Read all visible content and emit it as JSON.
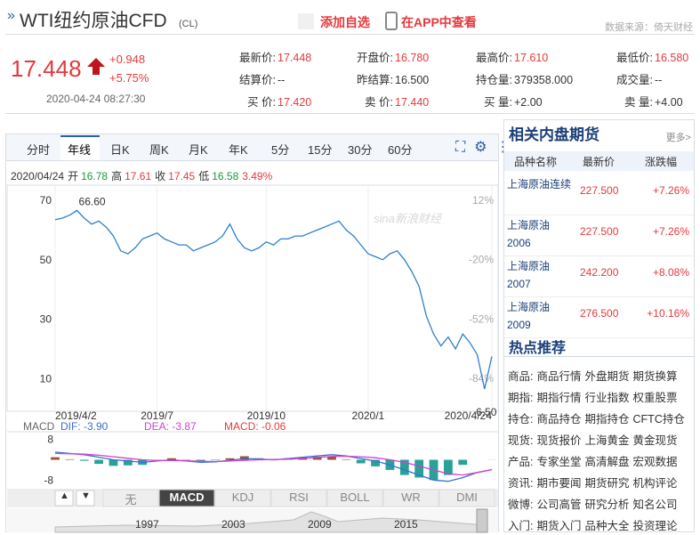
{
  "header": {
    "title": "WTI纽约原油CFD",
    "code": "(CL)",
    "add_watch": "添加自选",
    "app": "在APP中查看",
    "source": "数据来源：倚天财经"
  },
  "quote": {
    "price": "17.448",
    "change": "+0.948",
    "pct": "+5.75%",
    "time": "2020-04-24 08:27:30"
  },
  "stats": [
    {
      "label": "最新价:",
      "value": "17.448",
      "color": "#e4393c"
    },
    {
      "label": "开盘价:",
      "value": "16.780",
      "color": "#e4393c"
    },
    {
      "label": "最高价:",
      "value": "17.610",
      "color": "#e4393c"
    },
    {
      "label": "最低价:",
      "value": "16.580",
      "color": "#e4393c"
    },
    {
      "label": "结算价:",
      "value": "--",
      "color": "#333333"
    },
    {
      "label": "昨结算:",
      "value": "16.500",
      "color": "#333333"
    },
    {
      "label": "持仓量:",
      "value": "379358.000",
      "color": "#333333"
    },
    {
      "label": "成交量:",
      "value": "--",
      "color": "#333333"
    },
    {
      "label": "买 价:",
      "value": "17.420",
      "color": "#e4393c"
    },
    {
      "label": "卖 价:",
      "value": "17.440",
      "color": "#e4393c"
    },
    {
      "label": "买 量:",
      "value": "+2.00",
      "color": "#333333"
    },
    {
      "label": "卖 量:",
      "value": "+4.00",
      "color": "#333333"
    }
  ],
  "tabs": [
    "分时",
    "年线",
    "日K",
    "周K",
    "月K",
    "年K",
    "5分",
    "15分",
    "30分",
    "60分"
  ],
  "info": {
    "date": "2020/04/24",
    "items": [
      {
        "label": "开",
        "value": 16.78,
        "color": "#1a9a3a"
      },
      {
        "label": "高",
        "value": 17.61,
        "color": "#e4393c"
      },
      {
        "label": "收",
        "value": 17.45,
        "color": "#e4393c"
      },
      {
        "label": "低",
        "value": 16.58,
        "color": "#1a9a3a"
      }
    ],
    "pct": "3.49%"
  },
  "watermark": "sina新浪财经",
  "chart_data": [
    {
      "type": "line",
      "color": "#2f7fd0",
      "categories": [
        "2019/4/2",
        null,
        null,
        null,
        null,
        null,
        null,
        null,
        null,
        null,
        null,
        null,
        null,
        null,
        "2019/7",
        null,
        null,
        null,
        null,
        null,
        null,
        null,
        null,
        null,
        null,
        null,
        null,
        null,
        null,
        "2019/10",
        null,
        null,
        null,
        null,
        null,
        null,
        null,
        null,
        null,
        null,
        null,
        null,
        null,
        "2020/1",
        null,
        null,
        null,
        null,
        null,
        null,
        null,
        null,
        null,
        null,
        null,
        null,
        null,
        null,
        null,
        null,
        "2020/4/24"
      ],
      "values": [
        63.5,
        64,
        65,
        66.6,
        64,
        62,
        63,
        61,
        58,
        53,
        52,
        54,
        57,
        58,
        59,
        57,
        56,
        55,
        55,
        53,
        54,
        55,
        56,
        58,
        62,
        57,
        54,
        53,
        54,
        56,
        55,
        57,
        57,
        58,
        58,
        59,
        60,
        61,
        62,
        63,
        60,
        58,
        55,
        52,
        51,
        50,
        52,
        53,
        50,
        46,
        41,
        31,
        25,
        21,
        24,
        20,
        25,
        22,
        18,
        6.5,
        17.45
      ],
      "ylim": [
        2,
        73
      ],
      "yticks": [
        70,
        50,
        30,
        10
      ],
      "y2lim": [
        -97,
        16.8
      ],
      "y2ticks": [
        {
          "value": 12,
          "label": "12%"
        },
        {
          "value": -20,
          "label": "-20%"
        },
        {
          "value": -52,
          "label": "-52%"
        },
        {
          "value": -84,
          "label": "-84%"
        }
      ],
      "annotations": {
        "max": "66.60",
        "min": "6.50"
      }
    },
    {
      "type": "macd",
      "labels": [
        {
          "text": "MACD",
          "color": "#666666"
        },
        {
          "text": "DIF: -3.90",
          "color": "#3b6fd0"
        },
        {
          "text": "DEA: -3.87",
          "color": "#d040d0"
        },
        {
          "text": "MACD: -0.06",
          "color": "#e4393c"
        }
      ],
      "dif": {
        "color": "#3b6fd0",
        "values": [
          3,
          2.5,
          2,
          1,
          0,
          -0.5,
          -1,
          -0.5,
          0,
          -0.5,
          -1,
          -0.8,
          -0.2,
          0.5,
          0.3,
          0,
          0.5,
          1,
          1.5,
          2,
          1.5,
          0.5,
          -0.5,
          -2,
          -4,
          -6,
          -8,
          -8.5,
          -7,
          -5,
          -3.9
        ]
      },
      "dea": {
        "color": "#d040d0",
        "values": [
          2.5,
          2.4,
          2.2,
          1.8,
          1.2,
          0.6,
          0,
          -0.3,
          -0.3,
          -0.4,
          -0.6,
          -0.7,
          -0.5,
          -0.2,
          0,
          0.1,
          0.2,
          0.5,
          0.9,
          1.3,
          1.4,
          1.2,
          0.8,
          0,
          -1,
          -2.5,
          -4,
          -5.5,
          -6,
          -5,
          -3.87
        ]
      },
      "hist": {
        "up_color": "#a0522d",
        "down_color": "#2aa198",
        "values": [
          1,
          0.2,
          -0.4,
          -1.6,
          -2.4,
          -2.2,
          -2,
          -0.4,
          0.6,
          -0.2,
          -0.8,
          -0.2,
          0.6,
          1.4,
          0.6,
          -0.2,
          0.6,
          1,
          1.2,
          1.4,
          0.2,
          -1.4,
          -2.6,
          -4,
          -6,
          -7,
          -8,
          -6,
          -2,
          0,
          -0.06
        ]
      },
      "ylim": [
        -10.7,
        10.7
      ],
      "yticks": [
        8,
        -8
      ]
    }
  ],
  "indicator_tabs": [
    "无",
    "MACD",
    "KDJ",
    "RSI",
    "BOLL",
    "WR",
    "DMI"
  ],
  "selected_indicator": "MACD",
  "overview_years": [
    "1997",
    "2003",
    "2009",
    "2015"
  ],
  "sidebar": {
    "title": "相关内盘期货",
    "more": "更多>",
    "columns": [
      "品种名称",
      "最新价",
      "涨跌幅"
    ],
    "rows": [
      [
        "上海原油连续",
        "227.500",
        "+7.26%"
      ],
      [
        "上海原油2006",
        "227.500",
        "+7.26%"
      ],
      [
        "上海原油2007",
        "242.200",
        "+8.08%"
      ],
      [
        "上海原油2009",
        "276.500",
        "+10.16%"
      ]
    ],
    "hot_title": "热点推荐",
    "hot": [
      {
        "cat": "商品:",
        "links": [
          "商品行情",
          "外盘期货",
          "期货换算"
        ]
      },
      {
        "cat": "期指:",
        "links": [
          "期指行情",
          "行业指数",
          "权重股票"
        ]
      },
      {
        "cat": "持仓:",
        "links": [
          "商品持仓",
          "期指持仓",
          "CFTC持仓"
        ]
      },
      {
        "cat": "现货:",
        "links": [
          "现货报价",
          "上海黄金",
          "黄金现货"
        ]
      },
      {
        "cat": "产品:",
        "links": [
          "专家坐堂",
          "高清解盘",
          "宏观数据"
        ]
      },
      {
        "cat": "资讯:",
        "links": [
          "期市要闻",
          "期货研究",
          "机构评论"
        ]
      },
      {
        "cat": "微博:",
        "links": [
          "公司高管",
          "研究分析",
          "知名公司"
        ]
      },
      {
        "cat": "入门:",
        "links": [
          "期货入门",
          "品种大全",
          "投资理论"
        ]
      }
    ]
  }
}
